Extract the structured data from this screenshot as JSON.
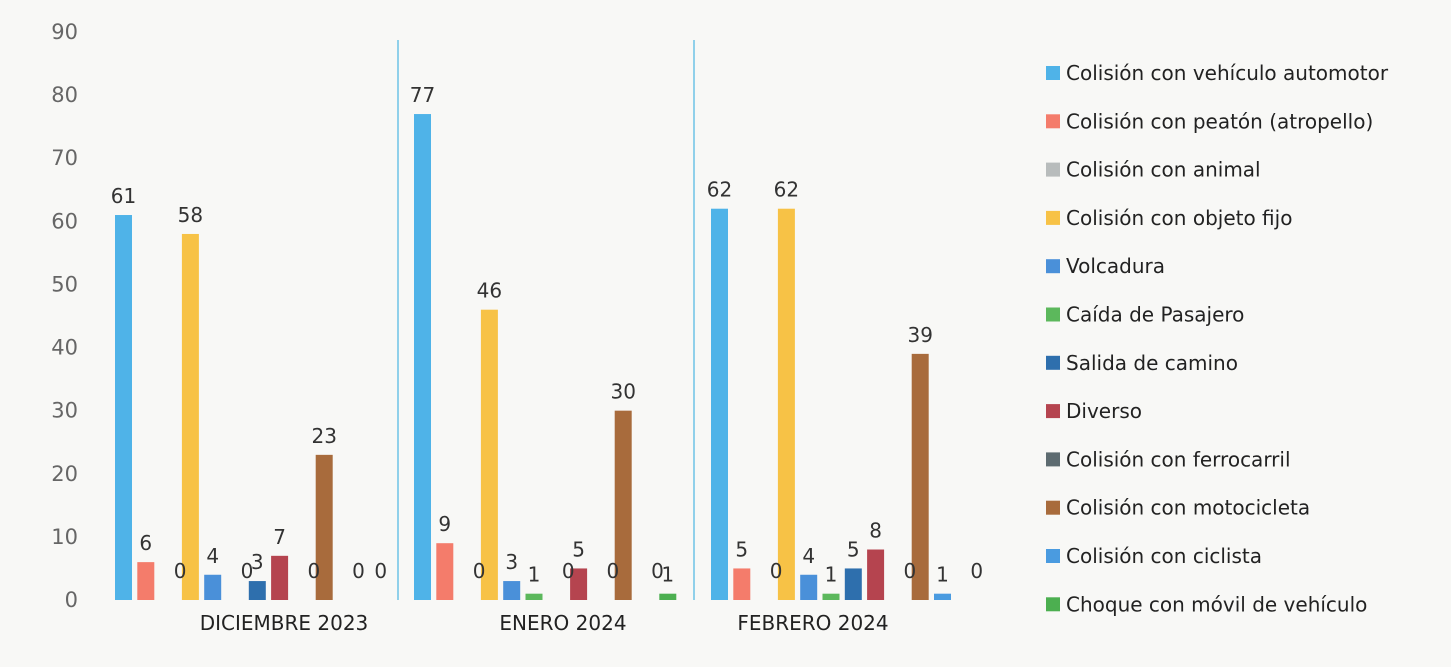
{
  "chart_data": {
    "type": "bar",
    "categories": [
      "DICIEMBRE 2023",
      "ENERO 2024",
      "FEBRERO 2024"
    ],
    "ylim": [
      0,
      90
    ],
    "yticks": [
      0,
      10,
      20,
      30,
      40,
      50,
      60,
      70,
      80,
      90
    ],
    "grid": false,
    "legend_position": "right",
    "series": [
      {
        "name": "Colisión con vehículo automotor",
        "color": "#4fb3e8",
        "values": [
          61,
          77,
          62
        ]
      },
      {
        "name": "Colisión con peatón (atropello)",
        "color": "#f47c6b",
        "values": [
          6,
          9,
          5
        ]
      },
      {
        "name": "Colisión con animal",
        "color": "#b8bcbc",
        "values": [
          0,
          0,
          0
        ]
      },
      {
        "name": "Colisión con objeto fijo",
        "color": "#f7c246",
        "values": [
          58,
          46,
          62
        ]
      },
      {
        "name": "Volcadura",
        "color": "#4a90d9",
        "values": [
          4,
          3,
          4
        ]
      },
      {
        "name": "Caída de Pasajero",
        "color": "#5cb85c",
        "values": [
          0,
          1,
          1
        ]
      },
      {
        "name": "Salida de camino",
        "color": "#2e6fad",
        "values": [
          3,
          0,
          5
        ]
      },
      {
        "name": "Diverso",
        "color": "#b5444f",
        "values": [
          7,
          5,
          8
        ]
      },
      {
        "name": "Colisión con ferrocarril",
        "color": "#5d6b70",
        "values": [
          0,
          0,
          0
        ]
      },
      {
        "name": "Colisión con motocicleta",
        "color": "#a86b3c",
        "values": [
          23,
          30,
          39
        ]
      },
      {
        "name": "Colisión con ciclista",
        "color": "#4a9be0",
        "values": [
          0,
          0,
          1
        ]
      },
      {
        "name": "Choque con móvil de vehículo",
        "color": "#4caf50",
        "values": [
          0,
          1,
          0
        ]
      }
    ]
  }
}
